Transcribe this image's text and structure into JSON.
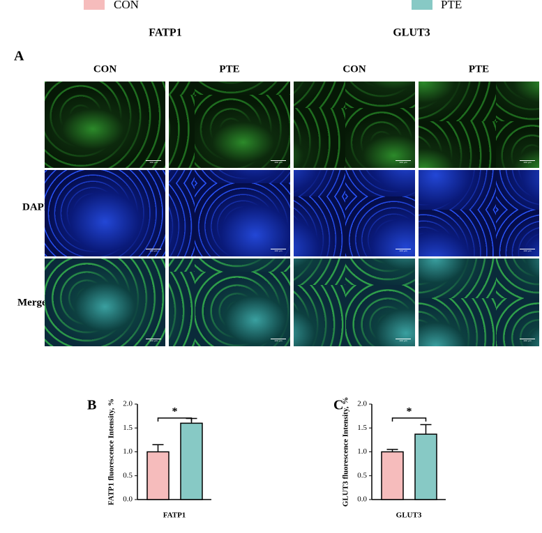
{
  "panel_a": {
    "label": "A",
    "groups": [
      "FATP1",
      "GLUT3"
    ],
    "columns": [
      "CON",
      "PTE",
      "CON",
      "PTE"
    ],
    "rows": [
      "DAPI",
      "Merge"
    ],
    "scale_bar": "100 μm"
  },
  "chart_data": [
    {
      "type": "bar",
      "panel_label": "B",
      "ylabel": "FATP1 fluorescence Intensity, %",
      "categories": [
        "FATP1"
      ],
      "series": [
        {
          "name": "CON",
          "color": "#f6bcbc",
          "values": [
            1.0
          ],
          "errors": [
            0.15
          ]
        },
        {
          "name": "PTE",
          "color": "#87c9c5",
          "values": [
            1.6
          ],
          "errors": [
            0.1
          ]
        }
      ],
      "ylim": [
        0,
        2
      ],
      "yticks": [
        {
          "value": 0,
          "label": "0.0"
        },
        {
          "value": 0.5,
          "label": "0.5"
        },
        {
          "value": 1,
          "label": "1.0"
        },
        {
          "value": 1.5,
          "label": "1.5"
        },
        {
          "value": 2,
          "label": "2.0"
        }
      ],
      "significance": "*"
    },
    {
      "type": "bar",
      "panel_label": "C",
      "ylabel": "GLUT3 fluorescence Intensity, %",
      "categories": [
        "GLUT3"
      ],
      "series": [
        {
          "name": "CON",
          "color": "#f6bcbc",
          "values": [
            1.0
          ],
          "errors": [
            0.05
          ]
        },
        {
          "name": "PTE",
          "color": "#87c9c5",
          "values": [
            1.37
          ],
          "errors": [
            0.2
          ]
        }
      ],
      "ylim": [
        0,
        2
      ],
      "yticks": [
        {
          "value": 0,
          "label": "0.0"
        },
        {
          "value": 0.5,
          "label": "0.5"
        },
        {
          "value": 1,
          "label": "1.0"
        },
        {
          "value": 1.5,
          "label": "1.5"
        },
        {
          "value": 2,
          "label": "2.0"
        }
      ],
      "significance": "*"
    }
  ]
}
